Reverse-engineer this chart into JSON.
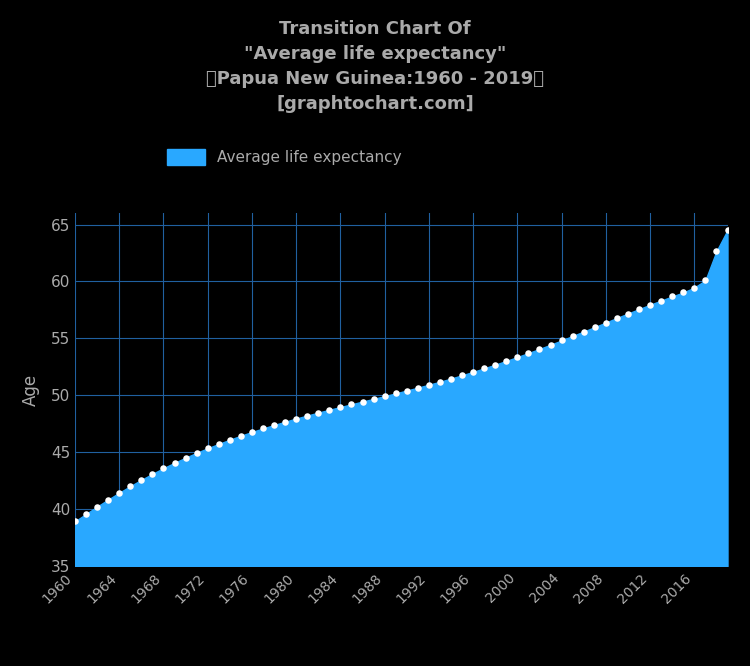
{
  "title": "Transition Chart Of\n\"Average life expectancy\"\n（Papua New Guinea:1960 - 2019）\n[graphtochart.com]",
  "ylabel": "Age",
  "legend_label": "Average life expectancy",
  "bg_color": "#000000",
  "plot_bg_color": "#000000",
  "fill_color": "#29a8ff",
  "dot_color": "#ffffff",
  "grid_color": "#2060a0",
  "title_color": "#aaaaaa",
  "axis_label_color": "#aaaaaa",
  "tick_label_color": "#aaaaaa",
  "ylim": [
    35,
    66
  ],
  "yticks": [
    35,
    40,
    45,
    50,
    55,
    60,
    65
  ],
  "years": [
    1960,
    1961,
    1962,
    1963,
    1964,
    1965,
    1966,
    1967,
    1968,
    1969,
    1970,
    1971,
    1972,
    1973,
    1974,
    1975,
    1976,
    1977,
    1978,
    1979,
    1980,
    1981,
    1982,
    1983,
    1984,
    1985,
    1986,
    1987,
    1988,
    1989,
    1990,
    1991,
    1992,
    1993,
    1994,
    1995,
    1996,
    1997,
    1998,
    1999,
    2000,
    2001,
    2002,
    2003,
    2004,
    2005,
    2006,
    2007,
    2008,
    2009,
    2010,
    2011,
    2012,
    2013,
    2014,
    2015,
    2016,
    2017,
    2018,
    2019
  ],
  "values": [
    38.93,
    39.58,
    40.22,
    40.84,
    41.44,
    42.02,
    42.57,
    43.1,
    43.6,
    44.07,
    44.52,
    44.95,
    45.35,
    45.73,
    46.1,
    46.45,
    46.78,
    47.09,
    47.39,
    47.68,
    47.96,
    48.22,
    48.48,
    48.73,
    48.97,
    49.21,
    49.45,
    49.69,
    49.93,
    50.17,
    50.42,
    50.67,
    50.93,
    51.19,
    51.47,
    51.76,
    52.06,
    52.37,
    52.69,
    53.02,
    53.36,
    53.71,
    54.07,
    54.44,
    54.82,
    55.21,
    55.6,
    55.99,
    56.39,
    56.79,
    57.18,
    57.57,
    57.95,
    58.32,
    58.68,
    59.03,
    59.46,
    60.1,
    62.65,
    64.5
  ]
}
